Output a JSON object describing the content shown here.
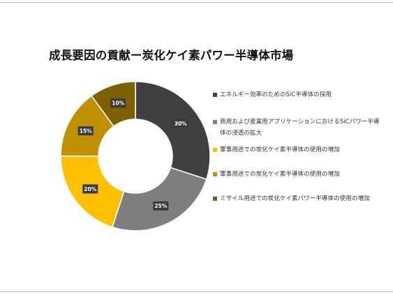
{
  "page": {
    "title": "成長要因の貢献ー炭化ケイ素パワー半導体市場"
  },
  "chart_data": {
    "type": "pie",
    "title": "成長要因の貢献ー炭化ケイ素パワー半導体市場",
    "donut": true,
    "legend_position": "right",
    "slices": [
      {
        "label": "エネルギー効率のためのSiC半導体の採用",
        "value": 30,
        "display": "30%",
        "color": "#404040"
      },
      {
        "label": "商用および産業用アプリケーションにおけるSiCパワー半導体の浸透の拡大",
        "value": 25,
        "display": "25%",
        "color": "#7f7f7f"
      },
      {
        "label": "軍事用途での炭化ケイ素半導体の使用の増加",
        "value": 20,
        "display": "20%",
        "color": "#ffc000"
      },
      {
        "label": "軍事用途での炭化ケイ素半導体の使用の増加",
        "value": 15,
        "display": "15%",
        "color": "#bf9000"
      },
      {
        "label": "ミサイル用途での炭化ケイ素パワー半導体の使用の増加",
        "value": 10,
        "display": "10%",
        "color": "#7f6000"
      }
    ]
  }
}
